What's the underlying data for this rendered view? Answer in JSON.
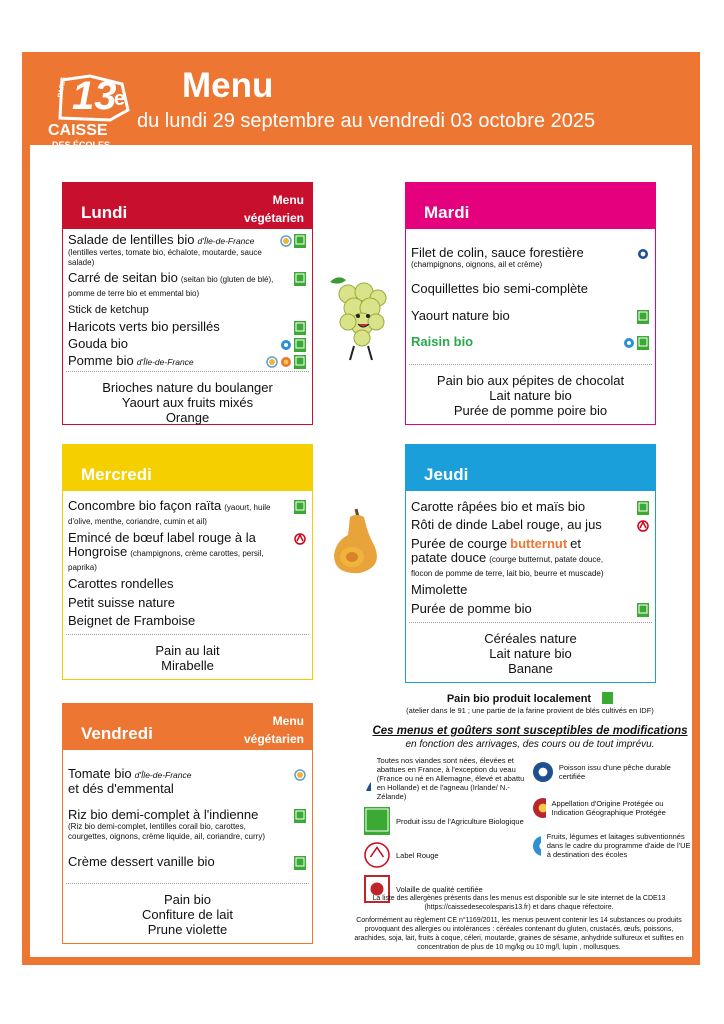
{
  "header": {
    "logo_city": "PARIS",
    "logo_number": "13",
    "logo_suffix": "e",
    "logo_line1": "CAISSE",
    "logo_line2": "DES ÉCOLES",
    "title": "Menu",
    "subtitle": "du lundi 29 septembre au vendredi 03 octobre 2025"
  },
  "days": [
    {
      "name": "Lundi",
      "tag": "Menu végétarien",
      "color": "#c8102e",
      "items": [
        {
          "segments": [
            {
              "text": "Salade de lentilles bio",
              "style": "main"
            },
            {
              "text": "d'Île-de-France",
              "style": "origin"
            },
            {
              "text": "(lentilles vertes, tomate bio, échalote, moutarde, sauce salade)",
              "style": "detail-block"
            }
          ],
          "icons": [
            "idf",
            "ab"
          ]
        },
        {
          "segments": [
            {
              "text": "Carré de seitan bio",
              "style": "main"
            },
            {
              "text": "(seitan bio (gluten de blé), pomme de terre bio et emmental bio)",
              "style": "detail"
            }
          ],
          "icons": [
            "ab"
          ]
        },
        {
          "segments": [
            {
              "text": "Stick de ketchup",
              "style": "small"
            }
          ],
          "icons": []
        },
        {
          "segments": [
            {
              "text": "Haricots verts bio persillés",
              "style": "main"
            }
          ],
          "icons": [
            "ab"
          ]
        },
        {
          "segments": [
            {
              "text": "Gouda bio",
              "style": "main"
            }
          ],
          "icons": [
            "eu",
            "ab"
          ]
        },
        {
          "segments": [
            {
              "text": "Pomme bio",
              "style": "main"
            },
            {
              "text": "d'Île-de-France",
              "style": "origin"
            }
          ],
          "icons": [
            "idf",
            "fruit",
            "ab"
          ]
        }
      ],
      "snack": [
        "Brioches nature du boulanger",
        "Yaourt aux fruits mixés",
        "Orange"
      ]
    },
    {
      "name": "Mardi",
      "color": "#e5007e",
      "items": [
        {
          "segments": [
            {
              "text": "Filet de colin, sauce forestière",
              "style": "main"
            },
            {
              "text": "(champignons, oignons, ail et crème)",
              "style": "detail-block"
            }
          ],
          "icons": [
            "peche"
          ]
        },
        {
          "segments": [
            {
              "text": "Coquillettes bio semi-complète",
              "style": "main"
            }
          ],
          "icons": []
        },
        {
          "segments": [
            {
              "text": "Yaourt nature bio",
              "style": "main"
            }
          ],
          "icons": [
            "ab"
          ]
        },
        {
          "segments": [
            {
              "text": "Raisin bio",
              "style": "green"
            }
          ],
          "icons": [
            "eu",
            "ab"
          ]
        }
      ],
      "snack": [
        "Pain bio aux pépites de chocolat",
        "Lait nature bio",
        "Purée de pomme poire bio"
      ]
    },
    {
      "name": "Mercredi",
      "color": "#f5cf00",
      "items": [
        {
          "segments": [
            {
              "text": "Concombre bio façon raïta",
              "style": "main"
            },
            {
              "text": "(yaourt, huile d'olive, menthe, coriandre, cumin et ail)",
              "style": "detail"
            }
          ],
          "icons": [
            "ab"
          ]
        },
        {
          "segments": [
            {
              "text": "Emincé de bœuf label rouge à la Hongroise",
              "style": "main"
            },
            {
              "text": "(champignons, crème carottes, persil, paprika)",
              "style": "detail"
            }
          ],
          "icons": [
            "label-rouge"
          ]
        },
        {
          "segments": [
            {
              "text": "Carottes rondelles",
              "style": "main"
            }
          ],
          "icons": []
        },
        {
          "segments": [
            {
              "text": "Petit suisse nature",
              "style": "main"
            }
          ],
          "icons": []
        },
        {
          "segments": [
            {
              "text": "Beignet de Framboise",
              "style": "main"
            }
          ],
          "icons": []
        }
      ],
      "snack": [
        "Pain au lait",
        "Mirabelle"
      ]
    },
    {
      "name": "Jeudi",
      "color": "#1b9fdb",
      "items": [
        {
          "segments": [
            {
              "text": "Carotte râpées bio et maïs bio",
              "style": "main"
            }
          ],
          "icons": [
            "ab"
          ]
        },
        {
          "segments": [
            {
              "text": "Rôti de dinde Label rouge, au jus",
              "style": "main"
            }
          ],
          "icons": [
            "label-rouge"
          ]
        },
        {
          "segments": [
            {
              "text": "Purée de courge",
              "style": "main"
            },
            {
              "text": "butternut",
              "style": "highlight"
            },
            {
              "text": "et patate douce",
              "style": "main"
            },
            {
              "text": "(courge butternut, patate douce, flocon de pomme de terre, lait bio, beurre et muscade)",
              "style": "detail"
            }
          ],
          "icons": []
        },
        {
          "segments": [
            {
              "text": "Mimolette",
              "style": "main"
            }
          ],
          "icons": []
        },
        {
          "segments": [
            {
              "text": "Purée de pomme bio",
              "style": "main"
            }
          ],
          "icons": [
            "ab"
          ]
        }
      ],
      "snack": [
        "Céréales nature",
        "Lait nature bio",
        "Banane"
      ]
    },
    {
      "name": "Vendredi",
      "tag": "Menu végétarien",
      "color": "#ee7633",
      "items": [
        {
          "segments": [
            {
              "text": "Tomate bio",
              "style": "main"
            },
            {
              "text": "d'Île-de-France",
              "style": "origin"
            },
            {
              "text": "et dés d'emmental",
              "style": "main-block"
            }
          ],
          "icons": [
            "idf"
          ]
        },
        {
          "segments": [
            {
              "text": "Riz bio demi-complet à l'indienne",
              "style": "main"
            },
            {
              "text": "(Riz bio demi-complet, lentilles corail bio, carottes, courgettes, oignons, crème liquide, ail, coriandre, curry)",
              "style": "detail-block"
            }
          ],
          "icons": [
            "ab"
          ]
        },
        {
          "segments": [
            {
              "text": "Crème dessert vanille bio",
              "style": "main"
            }
          ],
          "icons": [
            "ab"
          ]
        }
      ],
      "snack": [
        "Pain bio",
        "Confiture de lait",
        "Prune violette"
      ]
    }
  ],
  "notes": {
    "local_bread": "Pain bio produit localement",
    "local_bread_detail": "(atelier dans le 91 ; une partie de la farine provient de blés cultivés en IDF)",
    "warning": "Ces menus et goûters sont susceptibles de modifications",
    "warning_detail": "en fonction des arrivages, des cours ou de tout imprévu."
  },
  "legend_left": [
    {
      "icon": "viande",
      "text": "Toutes nos viandes sont nées, élevées et abattues en France, à l'exception du veau (France ou né en Allemagne, élevé et abattu en Hollande) et de l'agneau (Irlande/ N.-Zélande)"
    },
    {
      "icon": "ab",
      "text": "Produit issu de l'Agriculture Biologique"
    },
    {
      "icon": "label-rouge",
      "text": "Label Rouge"
    },
    {
      "icon": "volaille",
      "text": "Volaille de qualité certifiée"
    }
  ],
  "legend_right": [
    {
      "icon": "peche",
      "text": "Poisson issu d'une pêche durable certifiée"
    },
    {
      "icon": "aop",
      "text": "Appellation d'Origine Protégée ou Indication Géographique Protégée"
    },
    {
      "icon": "eu",
      "text": "Fruits, légumes et laitages subventionnés dans le cadre du programme d'aide de l'UE à destination des écoles"
    }
  ],
  "footer": [
    "La liste des allergènes présents dans les menus est disponible sur le site internet de la CDE13 (https://caissedesecolesparis13.fr) et dans chaque réfectoire.",
    "Conformément au règlement CE n°1169/2011, les menus peuvent contenir les 14 substances ou produits provoquant des allergies ou intolérances : céréales contenant du gluten, crustacés, œufs, poissons, arachides, soja, lait, fruits à coque, céleri, moutarde, graines de sésame, anhydride sulfureux et sulfites en concentration de plus de 10 mg/kg ou 10 mg/l, lupin , mollusques."
  ]
}
